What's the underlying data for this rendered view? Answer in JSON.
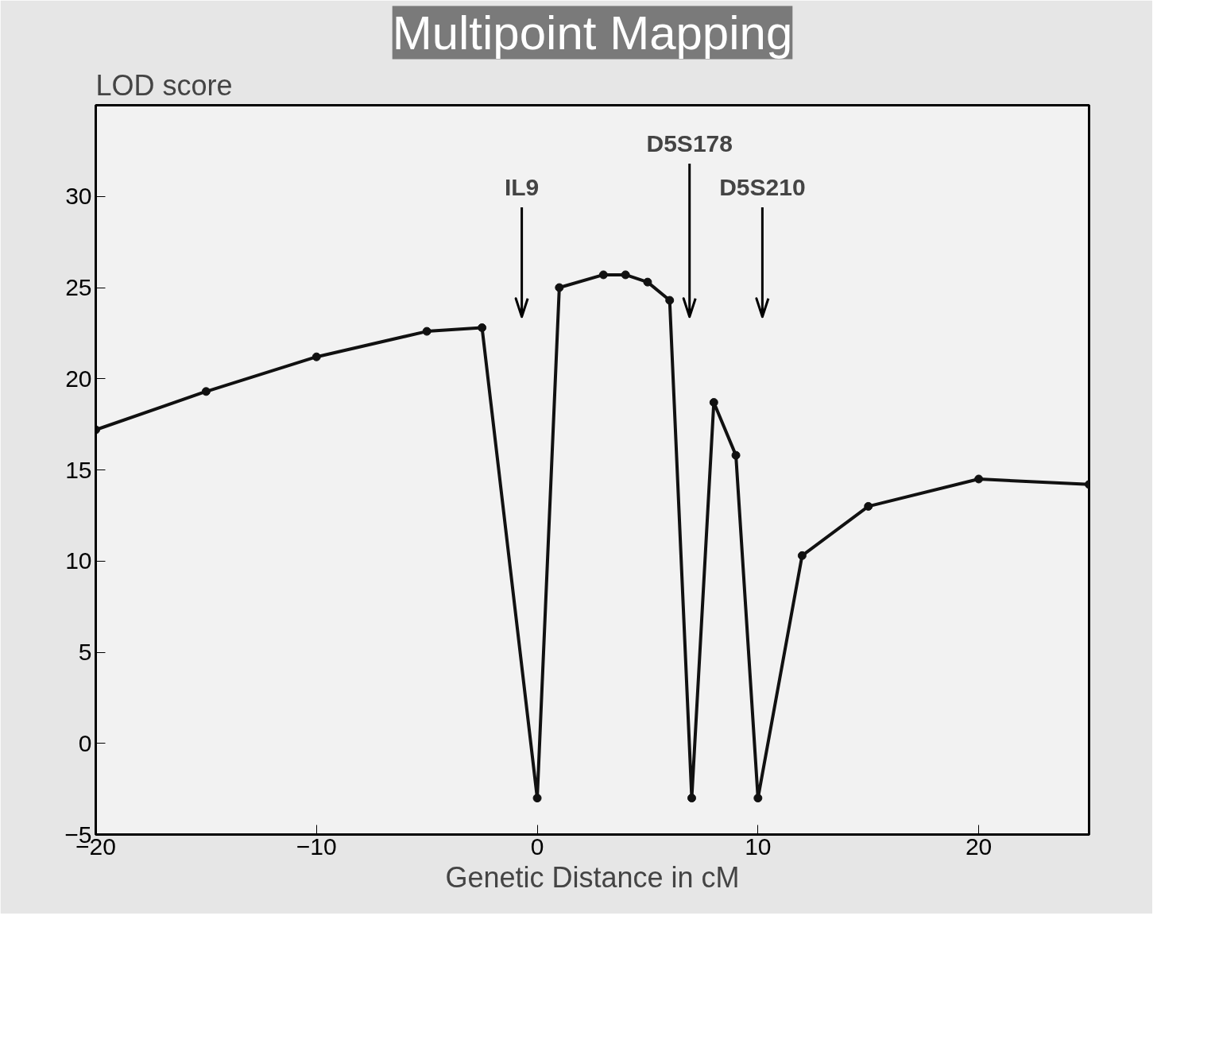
{
  "chart_data": {
    "type": "line",
    "title": "Multipoint Mapping",
    "xlabel": "Genetic Distance in cM",
    "ylabel": "LOD score",
    "x": [
      -20,
      -15,
      -10,
      -5,
      -2.5,
      0,
      1,
      3,
      4,
      5,
      6,
      7,
      8,
      9,
      10,
      12,
      15,
      20,
      25
    ],
    "series": [
      {
        "color": "#111111",
        "values": [
          17.2,
          19.3,
          21.2,
          22.6,
          22.8,
          -3,
          25,
          25.7,
          25.7,
          25.3,
          24.3,
          -3,
          18.7,
          15.8,
          -3,
          10.3,
          13,
          14.5,
          14.2
        ]
      }
    ],
    "xlim": [
      -20,
      25
    ],
    "ylim": [
      -5,
      35
    ],
    "xticks": [
      -20,
      -10,
      0,
      10,
      20
    ],
    "yticks": [
      -5,
      0,
      5,
      10,
      15,
      20,
      25,
      30
    ],
    "ref_lines": [
      {
        "axis": "x",
        "value": -0.7,
        "label": "IL9"
      },
      {
        "axis": "x",
        "value": 6.9,
        "label": "D5S178"
      },
      {
        "axis": "x",
        "value": 10.2,
        "label": "D5S210"
      }
    ],
    "marker": "circle",
    "line_style": "solid"
  }
}
